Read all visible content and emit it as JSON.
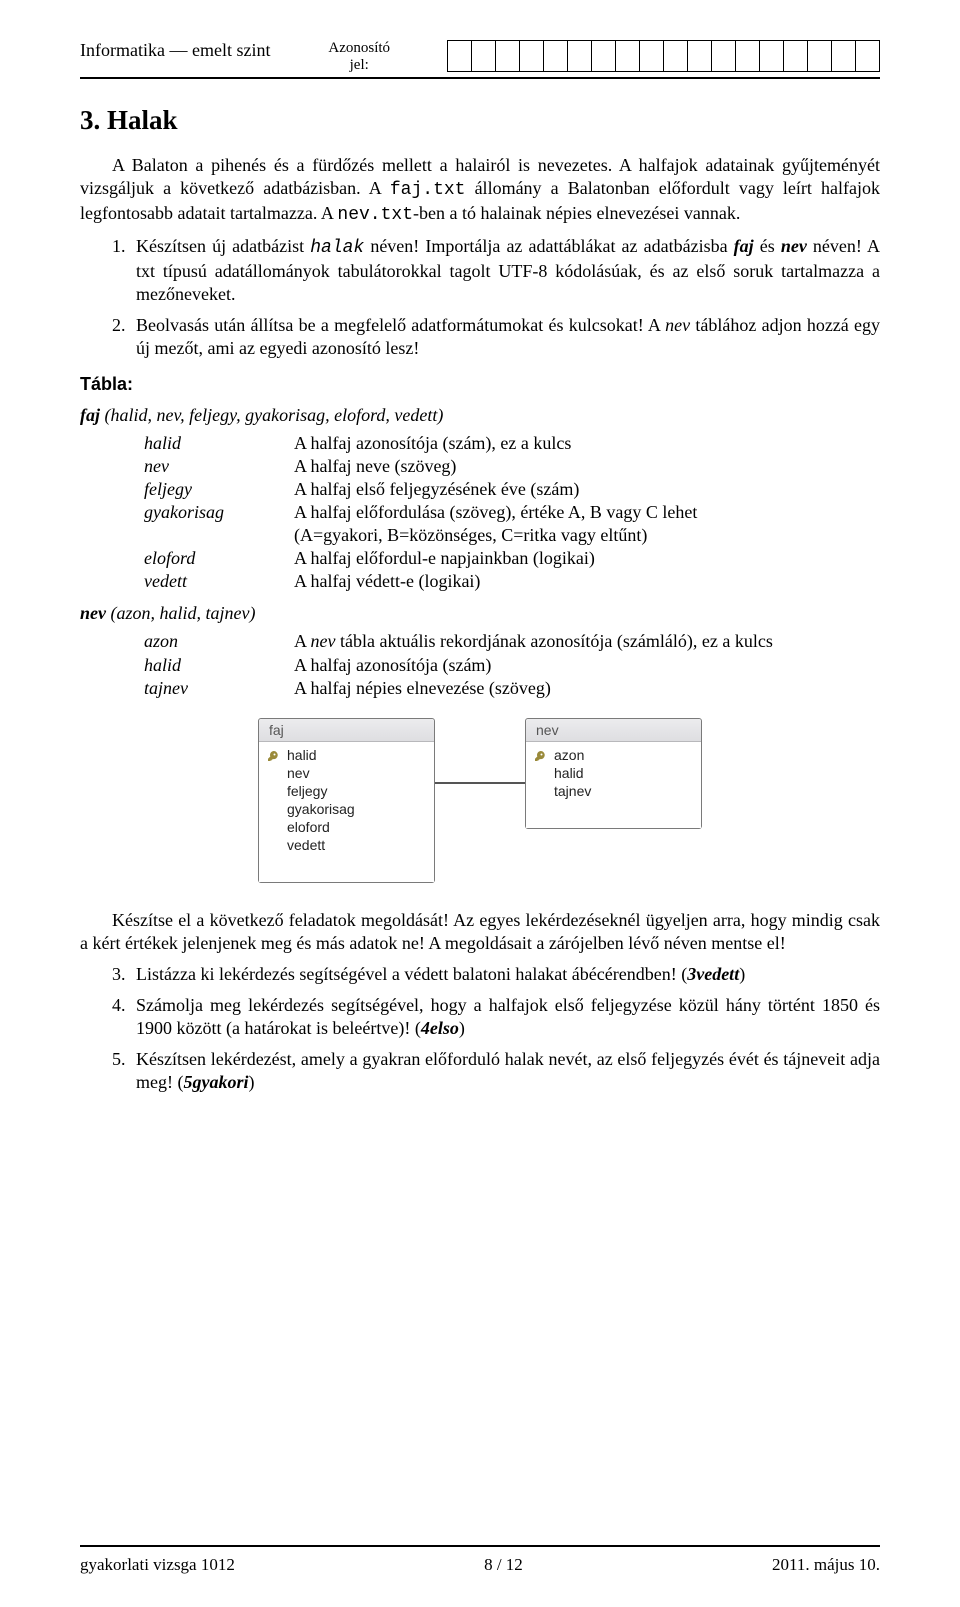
{
  "header": {
    "left": "Informatika — emelt szint",
    "center_line1": "Azonosító",
    "center_line2": "jel:",
    "id_cells": 18
  },
  "title": "3. Halak",
  "intro_html": "A Balaton a pihenés és a fürdőzés mellett a halairól is nevezetes. A halfajok adatainak gyűjteményét vizsgáljuk a következő adatbázisban. A <span class=\"mono\">faj.txt</span> állomány a Balatonban előfordult vagy leírt halfajok legfontosabb adatait tartalmazza. A <span class=\"mono\">nev.txt</span>-ben a tó halainak népies elnevezései vannak.",
  "tasks1": [
    {
      "num": "1.",
      "html": "Készítsen új adatbázist <span class=\"mono ital\">halak</span> néven! Importálja az adattáblákat az adatbázisba <span class=\"bital\">faj</span> és <span class=\"bital\">nev</span> néven! A txt típusú adatállományok tabulátorokkal tagolt UTF-8 kódolásúak, és az első soruk tartalmazza a mezőneveket."
    },
    {
      "num": "2.",
      "html": "Beolvasás után állítsa be a megfelelő adatformátumokat és kulcsokat! A <i>nev</i> táblához adjon hozzá egy új mezőt, ami az egyedi azonosító lesz!"
    }
  ],
  "tabla_label": "Tábla:",
  "table_faj": {
    "name": "faj",
    "sig": "(halid, nev, feljegy, gyakorisag, eloford, vedett)",
    "fields": [
      {
        "name": "halid",
        "desc": "A halfaj azonosítója (szám), ez a kulcs"
      },
      {
        "name": "nev",
        "desc": "A halfaj neve (szöveg)"
      },
      {
        "name": "feljegy",
        "desc": "A halfaj első feljegyzésének éve (szám)"
      },
      {
        "name": "gyakorisag",
        "desc": "A halfaj előfordulása (szöveg), értéke A, B vagy C lehet"
      },
      {
        "name": "",
        "desc": "(A=gyakori, B=közönséges, C=ritka vagy eltűnt)"
      },
      {
        "name": "eloford",
        "desc": "A halfaj előfordul-e napjainkban (logikai)"
      },
      {
        "name": "vedett",
        "desc": "A halfaj védett-e (logikai)"
      }
    ]
  },
  "table_nev": {
    "name": "nev",
    "sig": "(azon, halid, tajnev)",
    "fields": [
      {
        "name": "azon",
        "desc": "A <i>nev</i> tábla aktuális rekordjának azonosítója (számláló), ez a kulcs"
      },
      {
        "name": "halid",
        "desc": "A halfaj azonosítója (szám)"
      },
      {
        "name": "tajnev",
        "desc": "A halfaj népies elnevezése (szöveg)"
      }
    ]
  },
  "erd": {
    "faj": {
      "title": "faj",
      "fields": [
        "halid",
        "nev",
        "feljegy",
        "gyakorisag",
        "eloford",
        "vedett"
      ],
      "key_index": 0
    },
    "nev": {
      "title": "nev",
      "fields": [
        "azon",
        "halid",
        "tajnev"
      ],
      "key_index": 0
    }
  },
  "bottom_intro": "Készítse el a következő feladatok megoldását! Az egyes lekérdezéseknél ügyeljen arra, hogy mindig csak a kért értékek jelenjenek meg és más adatok ne! A megoldásait a zárójelben lévő néven mentse el!",
  "tasks2": [
    {
      "num": "3.",
      "html": "Listázza ki lekérdezés segítségével a védett balatoni halakat ábécérendben! (<span class=\"bital\">3vedett</span>)"
    },
    {
      "num": "4.",
      "html": "Számolja meg lekérdezés segítségével, hogy a halfajok első feljegyzése közül hány történt 1850 és 1900 között (a határokat is beleértve)! (<span class=\"bital\">4elso</span>)"
    },
    {
      "num": "5.",
      "html": "Készítsen lekérdezést, amely a gyakran előforduló halak nevét, az első feljegyzés évét és tájneveit adja meg! (<span class=\"bital\">5gyakori</span>)"
    }
  ],
  "footer": {
    "left": "gyakorlati vizsga 1012",
    "center": "8 / 12",
    "right": "2011. május 10."
  },
  "colors": {
    "rule": "#000000",
    "erd_border": "#7a7a7a",
    "erd_title_bg1": "#ececee",
    "erd_title_bg2": "#dedee1",
    "erd_body_bg": "#ffffff"
  }
}
